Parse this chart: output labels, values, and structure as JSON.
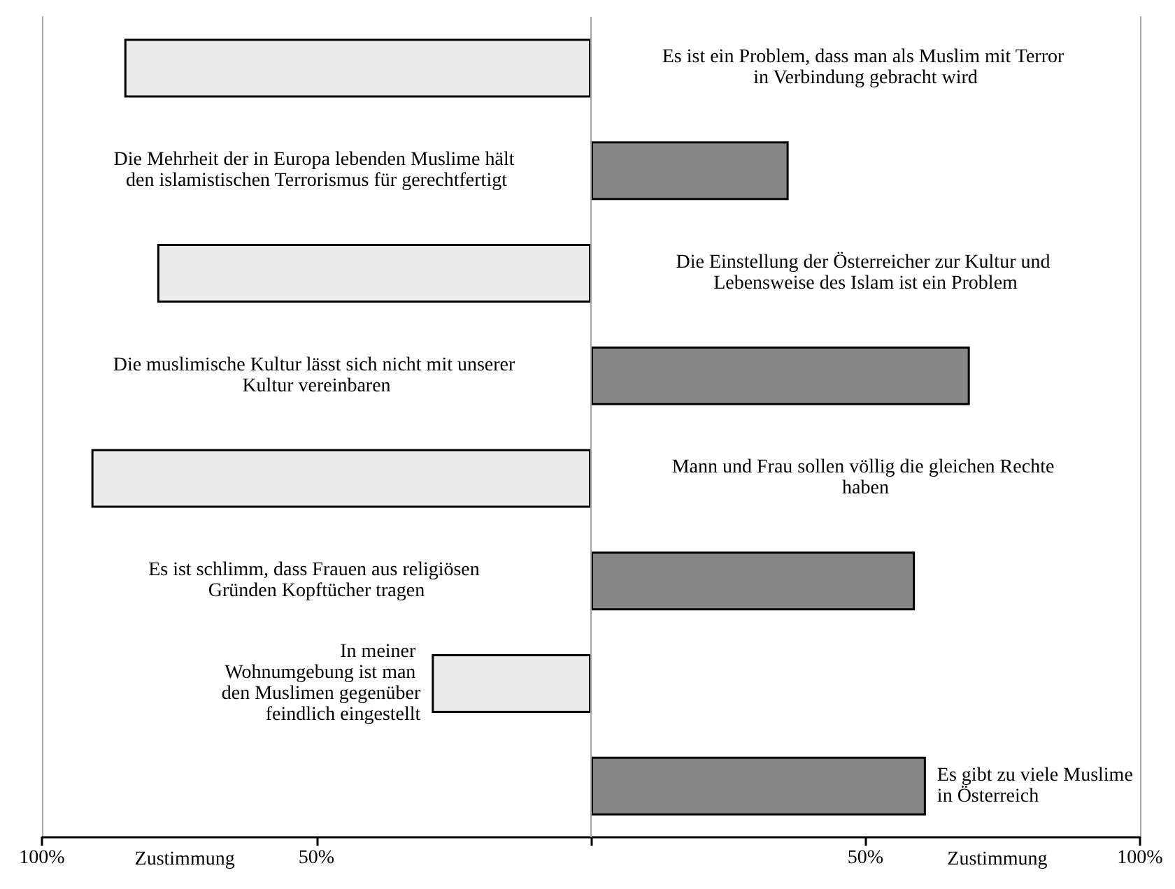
{
  "chart_data": {
    "type": "bar",
    "orientation": "horizontal",
    "categories": [
      "Es ist ein Problem, dass man als Muslim mit Terror in Verbindung gebracht wird",
      "Die Mehrheit der in Europa lebenden Muslime hält den islamistischen Terrorismus für gerechtfertigt",
      "Die Einstellung der Österreicher zur Kultur und Lebensweise des Islam ist ein Problem",
      "Die muslimische Kultur lässt sich nicht mit unserer Kultur vereinbaren",
      "Mann und Frau sollen völlig die gleichen Rechte haben",
      "Es ist schlimm, dass Frauen aus religiösen Gründen Kopftücher tragen",
      "In meiner Wohnumgebung ist man den Muslimen gegenüber feindlich eingestellt",
      "Es gibt zu viele Muslime in Österreich"
    ],
    "series": [
      {
        "color": "#ececec",
        "values": [
          -85,
          null,
          -79,
          null,
          -91,
          null,
          -29,
          null
        ]
      },
      {
        "color": "#878787",
        "values": [
          null,
          36,
          null,
          69,
          null,
          59,
          null,
          61
        ]
      }
    ],
    "xlim": [
      -100,
      100
    ],
    "xticks": [
      {
        "value": -100,
        "label": "100%"
      },
      {
        "value": -50,
        "label": "50%"
      },
      {
        "value": 0,
        "label": null
      },
      {
        "value": 50,
        "label": "50%"
      },
      {
        "value": 100,
        "label": "100%"
      }
    ],
    "ref_lines": [
      {
        "axis": "x",
        "value": 0,
        "color": "#a6a6a6"
      }
    ],
    "annotations": [
      "Zustimmung",
      "Zustimmung"
    ],
    "grid": false
  }
}
